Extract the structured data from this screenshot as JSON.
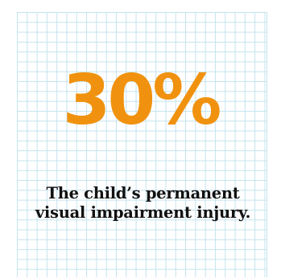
{
  "stat": {
    "value": "30%",
    "color": "#f0920f"
  },
  "caption": {
    "line1": "The child’s permanent",
    "line2": "visual impairment injury."
  },
  "grid_color": "#c4e3ee"
}
